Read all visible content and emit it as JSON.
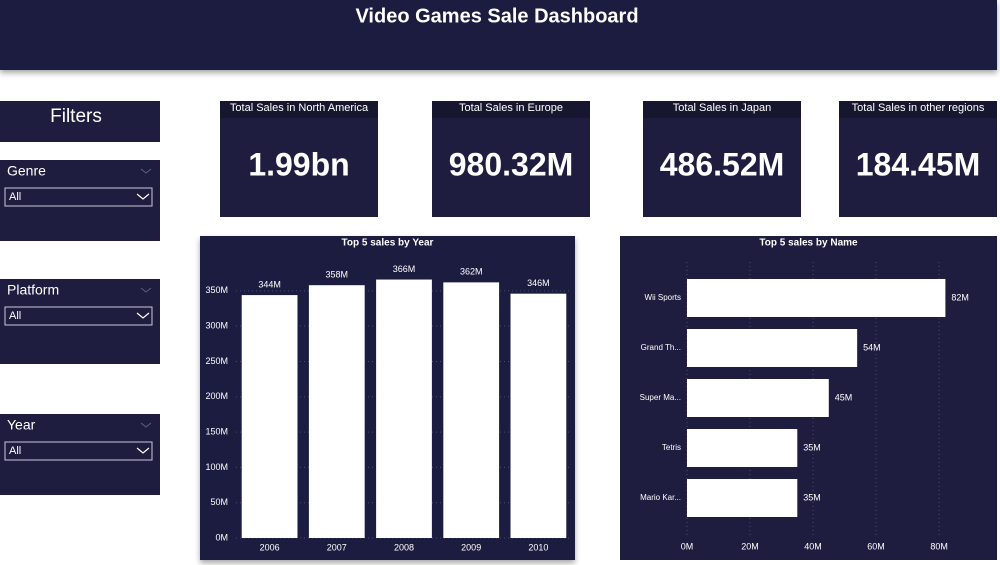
{
  "header": {
    "title": "Video Games Sale Dashboard"
  },
  "filters": {
    "title": "Filters",
    "slicers": [
      {
        "label": "Genre",
        "selected": "All"
      },
      {
        "label": "Platform",
        "selected": "All"
      },
      {
        "label": "Year",
        "selected": "All"
      }
    ]
  },
  "kpis": [
    {
      "title": "Total Sales in North America",
      "value": "1.99bn"
    },
    {
      "title": "Total Sales in Europe",
      "value": "980.32M"
    },
    {
      "title": "Total Sales in Japan",
      "value": "486.52M"
    },
    {
      "title": "Total Sales in other regions",
      "value": "184.45M"
    }
  ],
  "chart_data": [
    {
      "type": "bar",
      "title": "Top 5 sales by Year",
      "categories": [
        "2006",
        "2007",
        "2008",
        "2009",
        "2010"
      ],
      "values": [
        344,
        358,
        366,
        362,
        346
      ],
      "value_labels": [
        "344M",
        "358M",
        "366M",
        "362M",
        "346M"
      ],
      "color": "#ffffff",
      "ylim": [
        0,
        390
      ],
      "yticks": [
        {
          "value": 0,
          "label": "0M"
        },
        {
          "value": 50,
          "label": "50M"
        },
        {
          "value": 100,
          "label": "100M"
        },
        {
          "value": 150,
          "label": "150M"
        },
        {
          "value": 200,
          "label": "200M"
        },
        {
          "value": 250,
          "label": "250M"
        },
        {
          "value": 300,
          "label": "300M"
        },
        {
          "value": 350,
          "label": "350M"
        }
      ],
      "grid": true
    },
    {
      "type": "barh",
      "title": "Top 5 sales by Name",
      "categories": [
        "Wii Sports",
        "Grand Th...",
        "Super Ma...",
        "Tetris",
        "Mario Kar..."
      ],
      "values": [
        82,
        54,
        45,
        35,
        35
      ],
      "value_labels": [
        "82M",
        "54M",
        "45M",
        "35M",
        "35M"
      ],
      "color": "#ffffff",
      "xlim": [
        0,
        86
      ],
      "xticks": [
        {
          "value": 0,
          "label": "0M"
        },
        {
          "value": 20,
          "label": "20M"
        },
        {
          "value": 40,
          "label": "40M"
        },
        {
          "value": 60,
          "label": "60M"
        },
        {
          "value": 80,
          "label": "80M"
        }
      ],
      "grid": true
    }
  ]
}
